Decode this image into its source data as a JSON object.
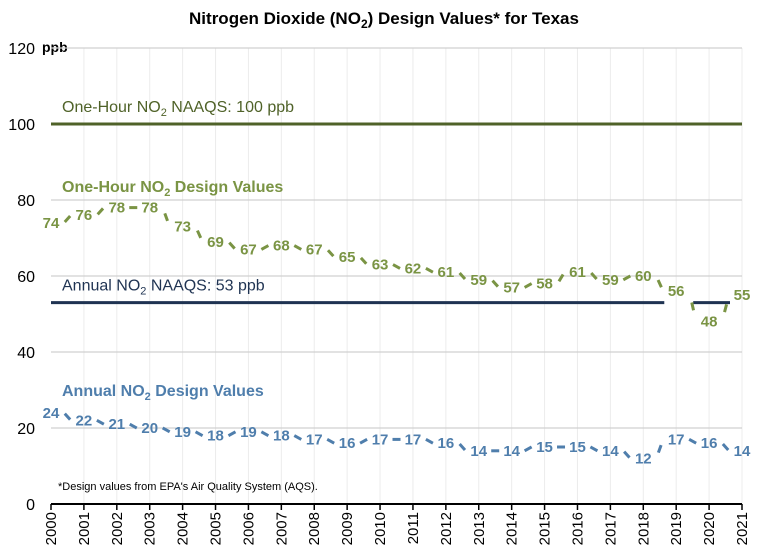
{
  "chart_data": {
    "type": "line",
    "title": "Nitrogen Dioxide (NO₂) Design Values* for Texas",
    "title_parts": {
      "pre": "Nitrogen Dioxide (NO",
      "sub": "2",
      "post": ") Design Values* for Texas"
    },
    "ylabel": "ppb",
    "xlabel": "",
    "ylim": [
      0,
      120
    ],
    "yticks": [
      0,
      20,
      40,
      60,
      80,
      100,
      120
    ],
    "grid": true,
    "x": [
      "2000",
      "2001",
      "2002",
      "2003",
      "2004",
      "2005",
      "2006",
      "2007",
      "2008",
      "2009",
      "2010",
      "2011",
      "2012",
      "2013",
      "2014",
      "2015",
      "2016",
      "2017",
      "2018",
      "2019",
      "2020",
      "2021"
    ],
    "series": [
      {
        "name": "One-Hour NO2 Design Values",
        "label_parts": {
          "pre": "One-Hour NO",
          "sub": "2",
          "post": " Design Values"
        },
        "color": "#7a9444",
        "style": "dashed",
        "values": [
          74,
          76,
          78,
          78,
          73,
          69,
          67,
          68,
          67,
          65,
          63,
          62,
          61,
          59,
          57,
          58,
          61,
          59,
          60,
          56,
          48,
          55
        ]
      },
      {
        "name": "Annual NO2 Design Values",
        "label_parts": {
          "pre": "Annual NO",
          "sub": "2",
          "post": " Design Values"
        },
        "color": "#4f7eac",
        "style": "dashed",
        "values": [
          24,
          22,
          21,
          20,
          19,
          18,
          19,
          18,
          17,
          16,
          17,
          17,
          16,
          14,
          14,
          15,
          15,
          14,
          12,
          17,
          16,
          14
        ]
      }
    ],
    "reference_lines": [
      {
        "name": "One-Hour NO2 NAAQS: 100 ppb",
        "label_parts": {
          "pre": "One-Hour NO",
          "sub": "2",
          "post": " NAAQS: 100 ppb"
        },
        "value": 100,
        "color": "#4f6228"
      },
      {
        "name": "Annual NO2 NAAQS: 53 ppb",
        "label_parts": {
          "pre": "Annual NO",
          "sub": "2",
          "post": " NAAQS: 53 ppb"
        },
        "value": 53,
        "color": "#1f3352"
      }
    ],
    "footnote": "*Design values from EPA's Air Quality System (AQS)."
  }
}
